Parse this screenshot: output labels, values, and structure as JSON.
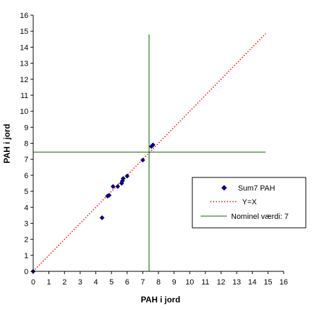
{
  "chart_data": {
    "type": "scatter",
    "xlabel": "PAH i jord",
    "ylabel": "PAH i jord",
    "xlim": [
      0,
      16
    ],
    "ylim": [
      0,
      16
    ],
    "x_ticks": [
      0,
      1,
      2,
      3,
      4,
      5,
      6,
      7,
      8,
      9,
      10,
      11,
      12,
      13,
      14,
      15,
      16
    ],
    "y_ticks": [
      0,
      1,
      2,
      3,
      4,
      5,
      6,
      7,
      8,
      9,
      10,
      11,
      12,
      13,
      14,
      15,
      16
    ],
    "grid": false,
    "legend_position": "right",
    "series": [
      {
        "name": "Sum7 PAH",
        "kind": "markers",
        "marker": "diamond",
        "color": "#000080",
        "points": [
          {
            "x": 0.0,
            "y": 0.0
          },
          {
            "x": 4.4,
            "y": 3.35
          },
          {
            "x": 4.75,
            "y": 4.7
          },
          {
            "x": 4.85,
            "y": 4.75
          },
          {
            "x": 5.1,
            "y": 5.3
          },
          {
            "x": 5.4,
            "y": 5.3
          },
          {
            "x": 5.65,
            "y": 5.5
          },
          {
            "x": 5.75,
            "y": 5.8
          },
          {
            "x": 5.7,
            "y": 5.65
          },
          {
            "x": 6.0,
            "y": 5.95
          },
          {
            "x": 7.0,
            "y": 6.95
          },
          {
            "x": 7.55,
            "y": 7.8
          },
          {
            "x": 7.65,
            "y": 7.9
          }
        ]
      },
      {
        "name": "Y=X",
        "kind": "line",
        "style": "dotted",
        "color": "#ff0000",
        "points": [
          {
            "x": 0,
            "y": 0
          },
          {
            "x": 14.85,
            "y": 14.85
          }
        ]
      },
      {
        "name": "Nominel værdi: 7",
        "kind": "crosshair",
        "color": "#006400",
        "vertical": {
          "x": 7.4,
          "y_from": 0,
          "y_to": 14.8
        },
        "horizontal": {
          "y": 7.45,
          "x_from": 0,
          "x_to": 14.85
        }
      }
    ]
  },
  "legend": {
    "items": [
      {
        "label": "Sum7 PAH",
        "symbol": "diamond",
        "color": "#000080"
      },
      {
        "label": "Y=X",
        "symbol": "dotted-line",
        "color": "#ff0000"
      },
      {
        "label": "Nominel værdi: 7",
        "symbol": "solid-line",
        "color": "#006400"
      }
    ]
  }
}
